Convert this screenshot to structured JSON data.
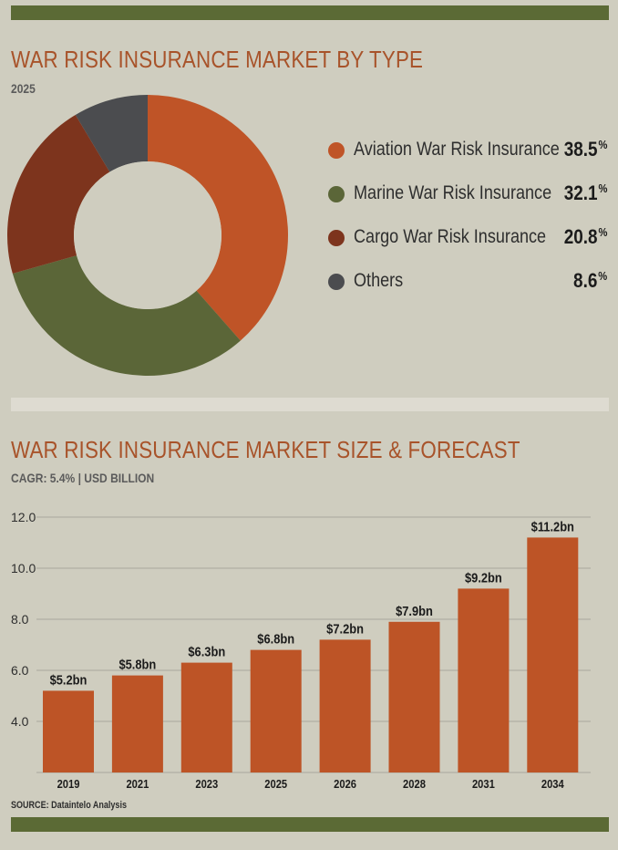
{
  "colors": {
    "background": "#cfcdbf",
    "band_dark": "#5b6a35",
    "band_light": "#dedbd1",
    "title": "#a8532a",
    "bar": "#bd5426",
    "aviation": "#bf5427",
    "marine": "#5b6638",
    "cargo": "#7d341d",
    "others": "#4b4c4f",
    "grid": "#a9a79c"
  },
  "donut": {
    "title": "WAR RISK INSURANCE MARKET BY TYPE",
    "subtitle": "2025"
  },
  "bar": {
    "title": "WAR RISK INSURANCE MARKET SIZE & FORECAST",
    "subtitle": "CAGR: 5.4% | USD BILLION"
  },
  "source": "SOURCE: Dataintelo Analysis",
  "chart_data": [
    {
      "type": "pie",
      "title": "WAR RISK INSURANCE MARKET BY TYPE",
      "subtitle": "2025",
      "donut": true,
      "legend": "right",
      "slices": [
        {
          "label": "Aviation War Risk Insurance",
          "value": 38.5,
          "display": "38.5",
          "unit": "%",
          "color": "#bf5427"
        },
        {
          "label": "Marine War Risk Insurance",
          "value": 32.1,
          "display": "32.1",
          "unit": "%",
          "color": "#5b6638"
        },
        {
          "label": "Cargo War Risk Insurance",
          "value": 20.8,
          "display": "20.8",
          "unit": "%",
          "color": "#7d341d"
        },
        {
          "label": "Others",
          "value": 8.6,
          "display": "8.6",
          "unit": "%",
          "color": "#4b4c4f"
        }
      ]
    },
    {
      "type": "bar",
      "title": "WAR RISK INSURANCE MARKET SIZE & FORECAST",
      "subtitle": "CAGR: 5.4% | USD BILLION",
      "categories": [
        "2019",
        "2021",
        "2023",
        "2025",
        "2026",
        "2028",
        "2031",
        "2034"
      ],
      "values": [
        5.2,
        5.8,
        6.3,
        6.8,
        7.2,
        7.9,
        9.2,
        11.2
      ],
      "data_labels": [
        "$5.2bn",
        "$5.8bn",
        "$6.3bn",
        "$6.8bn",
        "$7.2bn",
        "$7.9bn",
        "$9.2bn",
        "$11.2bn"
      ],
      "ylim": [
        2.0,
        12.0
      ],
      "yticks": [
        4.0,
        6.0,
        8.0,
        10.0,
        12.0
      ],
      "ytick_labels": [
        "4.0",
        "6.0",
        "8.0",
        "10.0",
        "12.0"
      ],
      "grid": true,
      "color": "#bd5426"
    }
  ]
}
